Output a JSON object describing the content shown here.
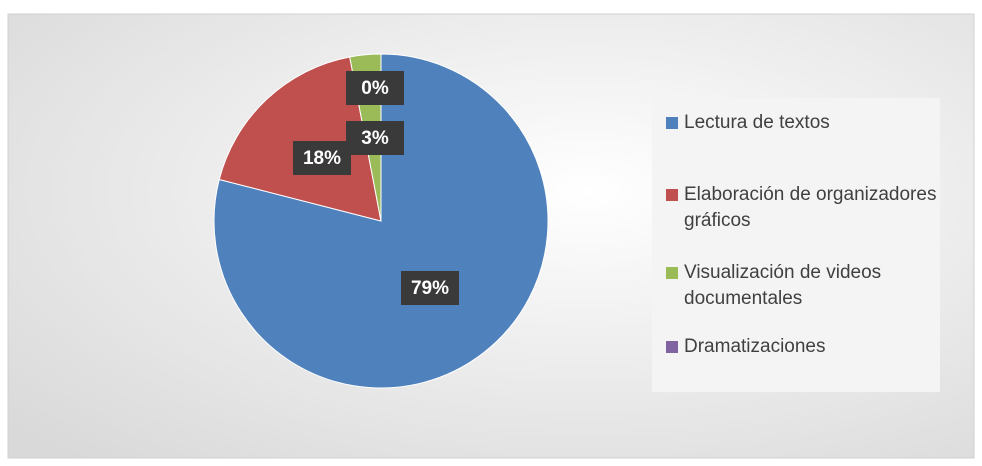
{
  "chart_data": {
    "type": "pie",
    "categories": [
      "Lectura de textos",
      "Elaboración de organizadores gráficos",
      "Visualización de videos documentales",
      "Dramatizaciones"
    ],
    "values": [
      79,
      18,
      3,
      0
    ],
    "value_labels": [
      "79%",
      "18%",
      "3%",
      "0%"
    ],
    "colors": [
      "#4f81bd",
      "#c0504d",
      "#9bbb59",
      "#8064a2"
    ],
    "legend": "right"
  }
}
